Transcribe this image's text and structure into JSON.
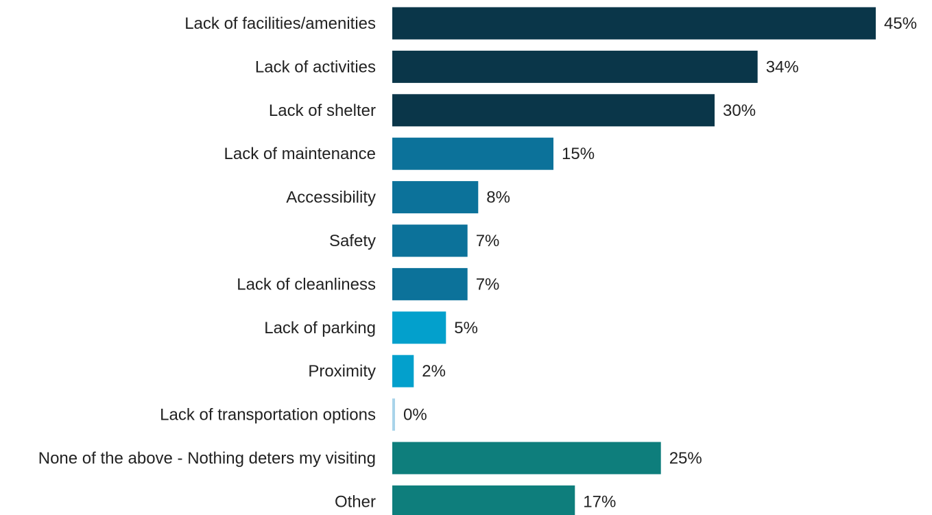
{
  "chart_data": {
    "type": "bar",
    "orientation": "horizontal",
    "title": "",
    "xlabel": "",
    "ylabel": "",
    "xlim": [
      0,
      45
    ],
    "grid": false,
    "legend": "none",
    "value_suffix": "%",
    "categories": [
      "Lack of facilities/amenities",
      "Lack of activities",
      "Lack of shelter",
      "Lack of maintenance",
      "Accessibility",
      "Safety",
      "Lack of cleanliness",
      "Lack of parking",
      "Proximity",
      "Lack of transportation options",
      "None of the above - Nothing deters my visiting",
      "Other"
    ],
    "values": [
      45,
      34,
      30,
      15,
      8,
      7,
      7,
      5,
      2,
      0,
      25,
      17
    ],
    "value_labels": [
      "45%",
      "34%",
      "30%",
      "15%",
      "8%",
      "7%",
      "7%",
      "5%",
      "2%",
      "0%",
      "25%",
      "17%"
    ],
    "bar_colors": [
      "#0a3649",
      "#0a3649",
      "#0a3649",
      "#0c729a",
      "#0c729a",
      "#0c729a",
      "#0c729a",
      "#03a0cc",
      "#03a0cc",
      "#a9d4ea",
      "#0e7e7c",
      "#0e7e7c"
    ]
  }
}
